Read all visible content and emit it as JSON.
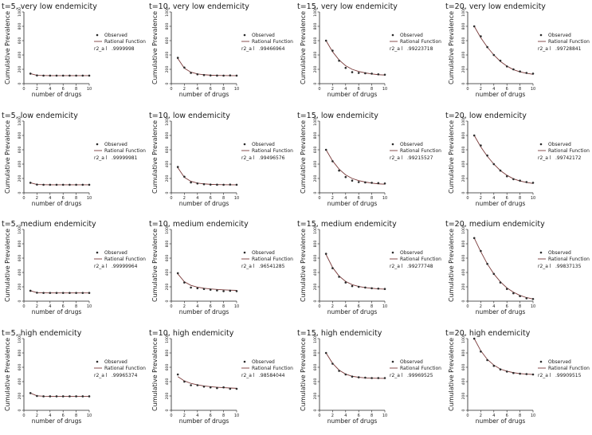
{
  "chart_data": [
    {
      "type": "scatter",
      "title": "t=5, very low endemicity",
      "xlabel": "number of drugs",
      "ylabel": "Cumulative Prevalence",
      "xlim": [
        0,
        10
      ],
      "ylim": [
        0,
        1000
      ],
      "x": [
        1,
        2,
        3,
        4,
        5,
        6,
        7,
        8,
        9,
        10
      ],
      "observed": [
        140,
        115,
        112,
        112,
        112,
        112,
        112,
        112,
        112,
        112
      ],
      "fitted": [
        140,
        116,
        113,
        112,
        112,
        112,
        112,
        112,
        112,
        112
      ],
      "legend": [
        "Observed",
        "Rational Function"
      ],
      "r2_label": "r2_a l",
      "r2_value": ".9999998"
    },
    {
      "type": "scatter",
      "title": "t=10, very low endemicity",
      "xlabel": "number of drugs",
      "ylabel": "Cumulative Prevalence",
      "xlim": [
        0,
        10
      ],
      "ylim": [
        0,
        1000
      ],
      "x": [
        1,
        2,
        3,
        4,
        5,
        6,
        7,
        8,
        9,
        10
      ],
      "observed": [
        360,
        225,
        150,
        130,
        120,
        115,
        113,
        112,
        115,
        112
      ],
      "fitted": [
        350,
        215,
        160,
        135,
        125,
        118,
        115,
        113,
        112,
        112
      ],
      "legend": [
        "Observed",
        "Rational Function"
      ],
      "r2_label": "r2_a l",
      "r2_value": ".99466964"
    },
    {
      "type": "scatter",
      "title": "t=15, very low endemicity",
      "xlabel": "number of drugs",
      "ylabel": "Cumulative Prevalence",
      "xlim": [
        0,
        10
      ],
      "ylim": [
        0,
        1000
      ],
      "x": [
        1,
        2,
        3,
        4,
        5,
        6,
        7,
        8,
        9,
        10
      ],
      "observed": [
        600,
        460,
        320,
        220,
        160,
        150,
        145,
        140,
        130,
        125
      ],
      "fitted": [
        600,
        445,
        330,
        250,
        200,
        170,
        150,
        135,
        125,
        120
      ],
      "legend": [
        "Observed",
        "Rational Function"
      ],
      "r2_label": "r2_a l",
      "r2_value": ".99223718"
    },
    {
      "type": "scatter",
      "title": "t=20, very low endemicity",
      "xlabel": "number of drugs",
      "ylabel": "Cumulative Prevalence",
      "xlim": [
        0,
        10
      ],
      "ylim": [
        0,
        1000
      ],
      "x": [
        1,
        2,
        3,
        4,
        5,
        6,
        7,
        8,
        9,
        10
      ],
      "observed": [
        800,
        660,
        510,
        400,
        320,
        240,
        200,
        170,
        150,
        140
      ],
      "fitted": [
        800,
        640,
        510,
        400,
        310,
        245,
        195,
        165,
        145,
        130
      ],
      "legend": [
        "Observed",
        "Rational Function"
      ],
      "r2_label": "r2_a l",
      "r2_value": ".99728841"
    },
    {
      "type": "scatter",
      "title": "t=5, low endemicity",
      "xlabel": "number of drugs",
      "ylabel": "Cumulative Prevalence",
      "xlim": [
        0,
        10
      ],
      "ylim": [
        0,
        1000
      ],
      "x": [
        1,
        2,
        3,
        4,
        5,
        6,
        7,
        8,
        9,
        10
      ],
      "observed": [
        140,
        115,
        112,
        112,
        112,
        112,
        112,
        112,
        112,
        112
      ],
      "fitted": [
        140,
        116,
        113,
        112,
        112,
        112,
        112,
        112,
        112,
        112
      ],
      "legend": [
        "Observed",
        "Rational Function"
      ],
      "r2_label": "r2_a l",
      "r2_value": ".99999981"
    },
    {
      "type": "scatter",
      "title": "t=10, low endemicity",
      "xlabel": "number of drugs",
      "ylabel": "Cumulative Prevalence",
      "xlim": [
        0,
        10
      ],
      "ylim": [
        0,
        1000
      ],
      "x": [
        1,
        2,
        3,
        4,
        5,
        6,
        7,
        8,
        9,
        10
      ],
      "observed": [
        360,
        225,
        145,
        130,
        120,
        115,
        113,
        112,
        115,
        112
      ],
      "fitted": [
        350,
        215,
        160,
        135,
        125,
        118,
        115,
        113,
        112,
        112
      ],
      "legend": [
        "Observed",
        "Rational Function"
      ],
      "r2_label": "r2_a l",
      "r2_value": ".99496576"
    },
    {
      "type": "scatter",
      "title": "t=15, low endemicity",
      "xlabel": "number of drugs",
      "ylabel": "Cumulative Prevalence",
      "xlim": [
        0,
        10
      ],
      "ylim": [
        0,
        1000
      ],
      "x": [
        1,
        2,
        3,
        4,
        5,
        6,
        7,
        8,
        9,
        10
      ],
      "observed": [
        600,
        440,
        310,
        220,
        170,
        150,
        145,
        140,
        135,
        130
      ],
      "fitted": [
        600,
        445,
        330,
        250,
        200,
        170,
        150,
        135,
        125,
        120
      ],
      "legend": [
        "Observed",
        "Rational Function"
      ],
      "r2_label": "r2_a l",
      "r2_value": ".99215527"
    },
    {
      "type": "scatter",
      "title": "t=20, low endemicity",
      "xlabel": "number of drugs",
      "ylabel": "Cumulative Prevalence",
      "xlim": [
        0,
        10
      ],
      "ylim": [
        0,
        1000
      ],
      "x": [
        1,
        2,
        3,
        4,
        5,
        6,
        7,
        8,
        9,
        10
      ],
      "observed": [
        800,
        660,
        520,
        400,
        310,
        230,
        190,
        170,
        150,
        140
      ],
      "fitted": [
        800,
        640,
        510,
        400,
        310,
        245,
        195,
        165,
        145,
        130
      ],
      "legend": [
        "Observed",
        "Rational Function"
      ],
      "r2_label": "r2_a l",
      "r2_value": ".99742172"
    },
    {
      "type": "scatter",
      "title": "t=5, medium endemicity",
      "xlabel": "number of drugs",
      "ylabel": "Cumulative Prevalence",
      "xlim": [
        0,
        10
      ],
      "ylim": [
        0,
        1000
      ],
      "x": [
        1,
        2,
        3,
        4,
        5,
        6,
        7,
        8,
        9,
        10
      ],
      "observed": [
        145,
        118,
        115,
        115,
        115,
        115,
        115,
        115,
        115,
        115
      ],
      "fitted": [
        145,
        119,
        116,
        115,
        115,
        115,
        115,
        115,
        115,
        115
      ],
      "legend": [
        "Observed",
        "Rational Function"
      ],
      "r2_label": "r2_a l",
      "r2_value": ".99999964"
    },
    {
      "type": "scatter",
      "title": "t=10, medium endemicity",
      "xlabel": "number of drugs",
      "ylabel": "Cumulative Prevalence",
      "xlim": [
        0,
        10
      ],
      "ylim": [
        0,
        1000
      ],
      "x": [
        1,
        2,
        3,
        4,
        5,
        6,
        7,
        8,
        9,
        10
      ],
      "observed": [
        390,
        260,
        190,
        180,
        170,
        160,
        150,
        140,
        145,
        140
      ],
      "fitted": [
        380,
        270,
        220,
        195,
        180,
        170,
        163,
        158,
        154,
        150
      ],
      "legend": [
        "Observed",
        "Rational Function"
      ],
      "r2_label": "r2_a l",
      "r2_value": ".96541285"
    },
    {
      "type": "scatter",
      "title": "t=15, medium endemicity",
      "xlabel": "number of drugs",
      "ylabel": "Cumulative Prevalence",
      "xlim": [
        0,
        10
      ],
      "ylim": [
        0,
        1000
      ],
      "x": [
        1,
        2,
        3,
        4,
        5,
        6,
        7,
        8,
        9,
        10
      ],
      "observed": [
        660,
        460,
        340,
        260,
        210,
        200,
        190,
        180,
        175,
        170
      ],
      "fitted": [
        650,
        470,
        350,
        275,
        230,
        205,
        190,
        180,
        172,
        167
      ],
      "legend": [
        "Observed",
        "Rational Function"
      ],
      "r2_label": "r2_a l",
      "r2_value": ".99277748"
    },
    {
      "type": "scatter",
      "title": "t=20, medium endemicity",
      "xlabel": "number of drugs",
      "ylabel": "Cumulative Prevalence",
      "xlim": [
        0,
        10
      ],
      "ylim": [
        0,
        1000
      ],
      "x": [
        1,
        2,
        3,
        4,
        5,
        6,
        7,
        8,
        9,
        10
      ],
      "observed": [
        880,
        700,
        520,
        380,
        260,
        170,
        110,
        70,
        40,
        30
      ],
      "fitted": [
        880,
        690,
        520,
        380,
        270,
        185,
        125,
        80,
        50,
        30
      ],
      "legend": [
        "Observed",
        "Rational Function"
      ],
      "r2_label": "r2_a l",
      "r2_value": ".99837135"
    },
    {
      "type": "scatter",
      "title": "t=5, high endemicity",
      "xlabel": "number of drugs",
      "ylabel": "Cumulative Prevalence",
      "xlim": [
        0,
        10
      ],
      "ylim": [
        0,
        1000
      ],
      "x": [
        1,
        2,
        3,
        4,
        5,
        6,
        7,
        8,
        9,
        10
      ],
      "observed": [
        240,
        200,
        195,
        195,
        195,
        195,
        195,
        195,
        195,
        195
      ],
      "fitted": [
        240,
        202,
        196,
        195,
        195,
        195,
        195,
        195,
        195,
        195
      ],
      "legend": [
        "Observed",
        "Rational Function"
      ],
      "r2_label": "r2_a l",
      "r2_value": ".99965374"
    },
    {
      "type": "scatter",
      "title": "t=10, high endemicity",
      "xlabel": "number of drugs",
      "ylabel": "Cumulative Prevalence",
      "xlim": [
        0,
        10
      ],
      "ylim": [
        0,
        1000
      ],
      "x": [
        1,
        2,
        3,
        4,
        5,
        6,
        7,
        8,
        9,
        10
      ],
      "observed": [
        500,
        400,
        350,
        350,
        330,
        320,
        310,
        320,
        300,
        300
      ],
      "fitted": [
        470,
        410,
        375,
        355,
        340,
        330,
        322,
        316,
        311,
        307
      ],
      "legend": [
        "Observed",
        "Rational Function"
      ],
      "r2_label": "r2_a l",
      "r2_value": ".98584044"
    },
    {
      "type": "scatter",
      "title": "t=15, high endemicity",
      "xlabel": "number of drugs",
      "ylabel": "Cumulative Prevalence",
      "xlim": [
        0,
        10
      ],
      "ylim": [
        0,
        1000
      ],
      "x": [
        1,
        2,
        3,
        4,
        5,
        6,
        7,
        8,
        9,
        10
      ],
      "observed": [
        800,
        650,
        550,
        500,
        470,
        460,
        455,
        450,
        450,
        450
      ],
      "fitted": [
        800,
        655,
        560,
        505,
        475,
        460,
        452,
        448,
        446,
        445
      ],
      "legend": [
        "Observed",
        "Rational Function"
      ],
      "r2_label": "r2_a l",
      "r2_value": ".99969525"
    },
    {
      "type": "scatter",
      "title": "t=20, high endemicity",
      "xlabel": "number of drugs",
      "ylabel": "Cumulative Prevalence",
      "xlim": [
        0,
        10
      ],
      "ylim": [
        0,
        1000
      ],
      "x": [
        1,
        2,
        3,
        4,
        5,
        6,
        7,
        8,
        9,
        10
      ],
      "observed": [
        1000,
        820,
        700,
        620,
        570,
        540,
        520,
        510,
        505,
        500
      ],
      "fitted": [
        1000,
        830,
        710,
        630,
        575,
        545,
        525,
        512,
        505,
        500
      ],
      "legend": [
        "Observed",
        "Rational Function"
      ],
      "r2_label": "r2_a l",
      "r2_value": ".99909515"
    }
  ],
  "tick_labels": {
    "x": [
      "0",
      "2",
      "4",
      "6",
      "8",
      "10"
    ],
    "y": [
      "0",
      "200",
      "400",
      "600",
      "800",
      "1000"
    ]
  },
  "colors": {
    "marker": "#2b2b2b",
    "line": "#7a3b3b",
    "axis": "#222222",
    "text": "#1a1a1a"
  }
}
